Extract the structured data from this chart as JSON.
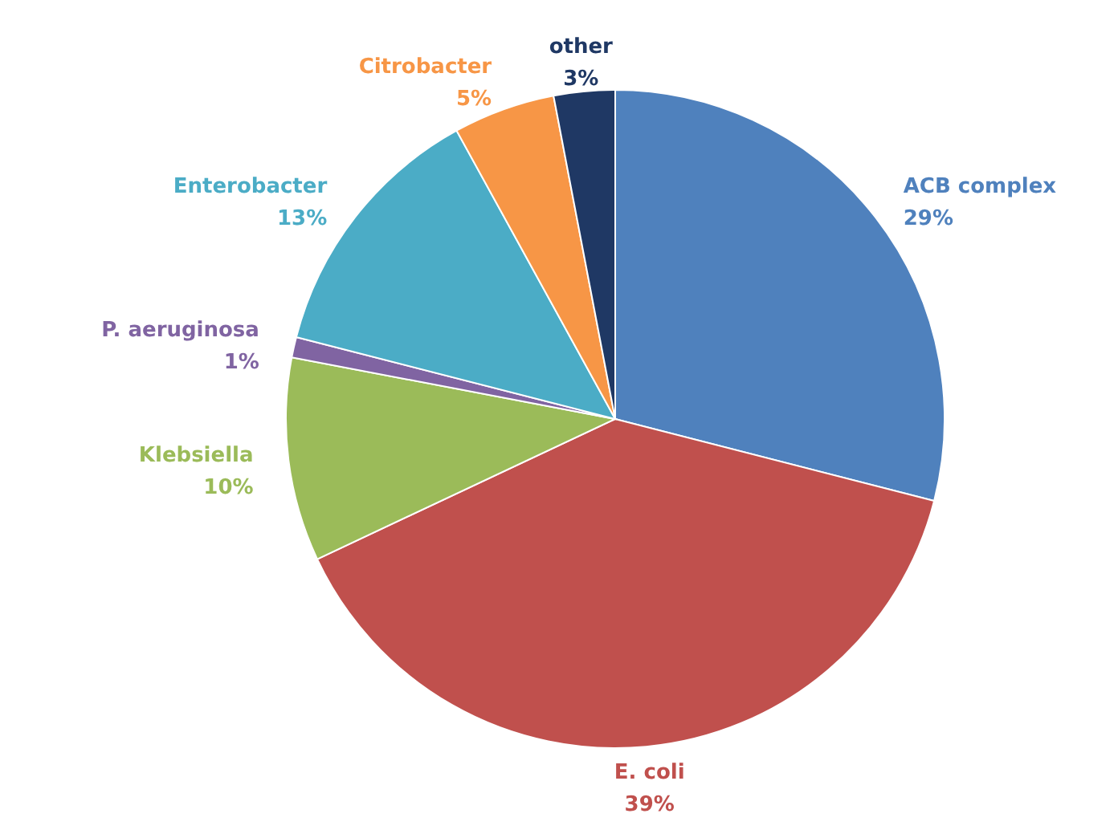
{
  "chart_data": {
    "type": "pie",
    "categories": [
      "ACB complex",
      "E. coli",
      "Klebsiella",
      "P. aeruginosa",
      "Enterobacter",
      "Citrobacter",
      "other"
    ],
    "values": [
      29,
      39,
      10,
      1,
      13,
      5,
      3
    ],
    "value_labels": [
      "29%",
      "39%",
      "10%",
      "1%",
      "13%",
      "5%",
      "3%"
    ],
    "colors": [
      "#4f81bd",
      "#c0504d",
      "#9bbb59",
      "#8064a2",
      "#4bacc6",
      "#f79646",
      "#1f3864"
    ],
    "legend": false
  }
}
